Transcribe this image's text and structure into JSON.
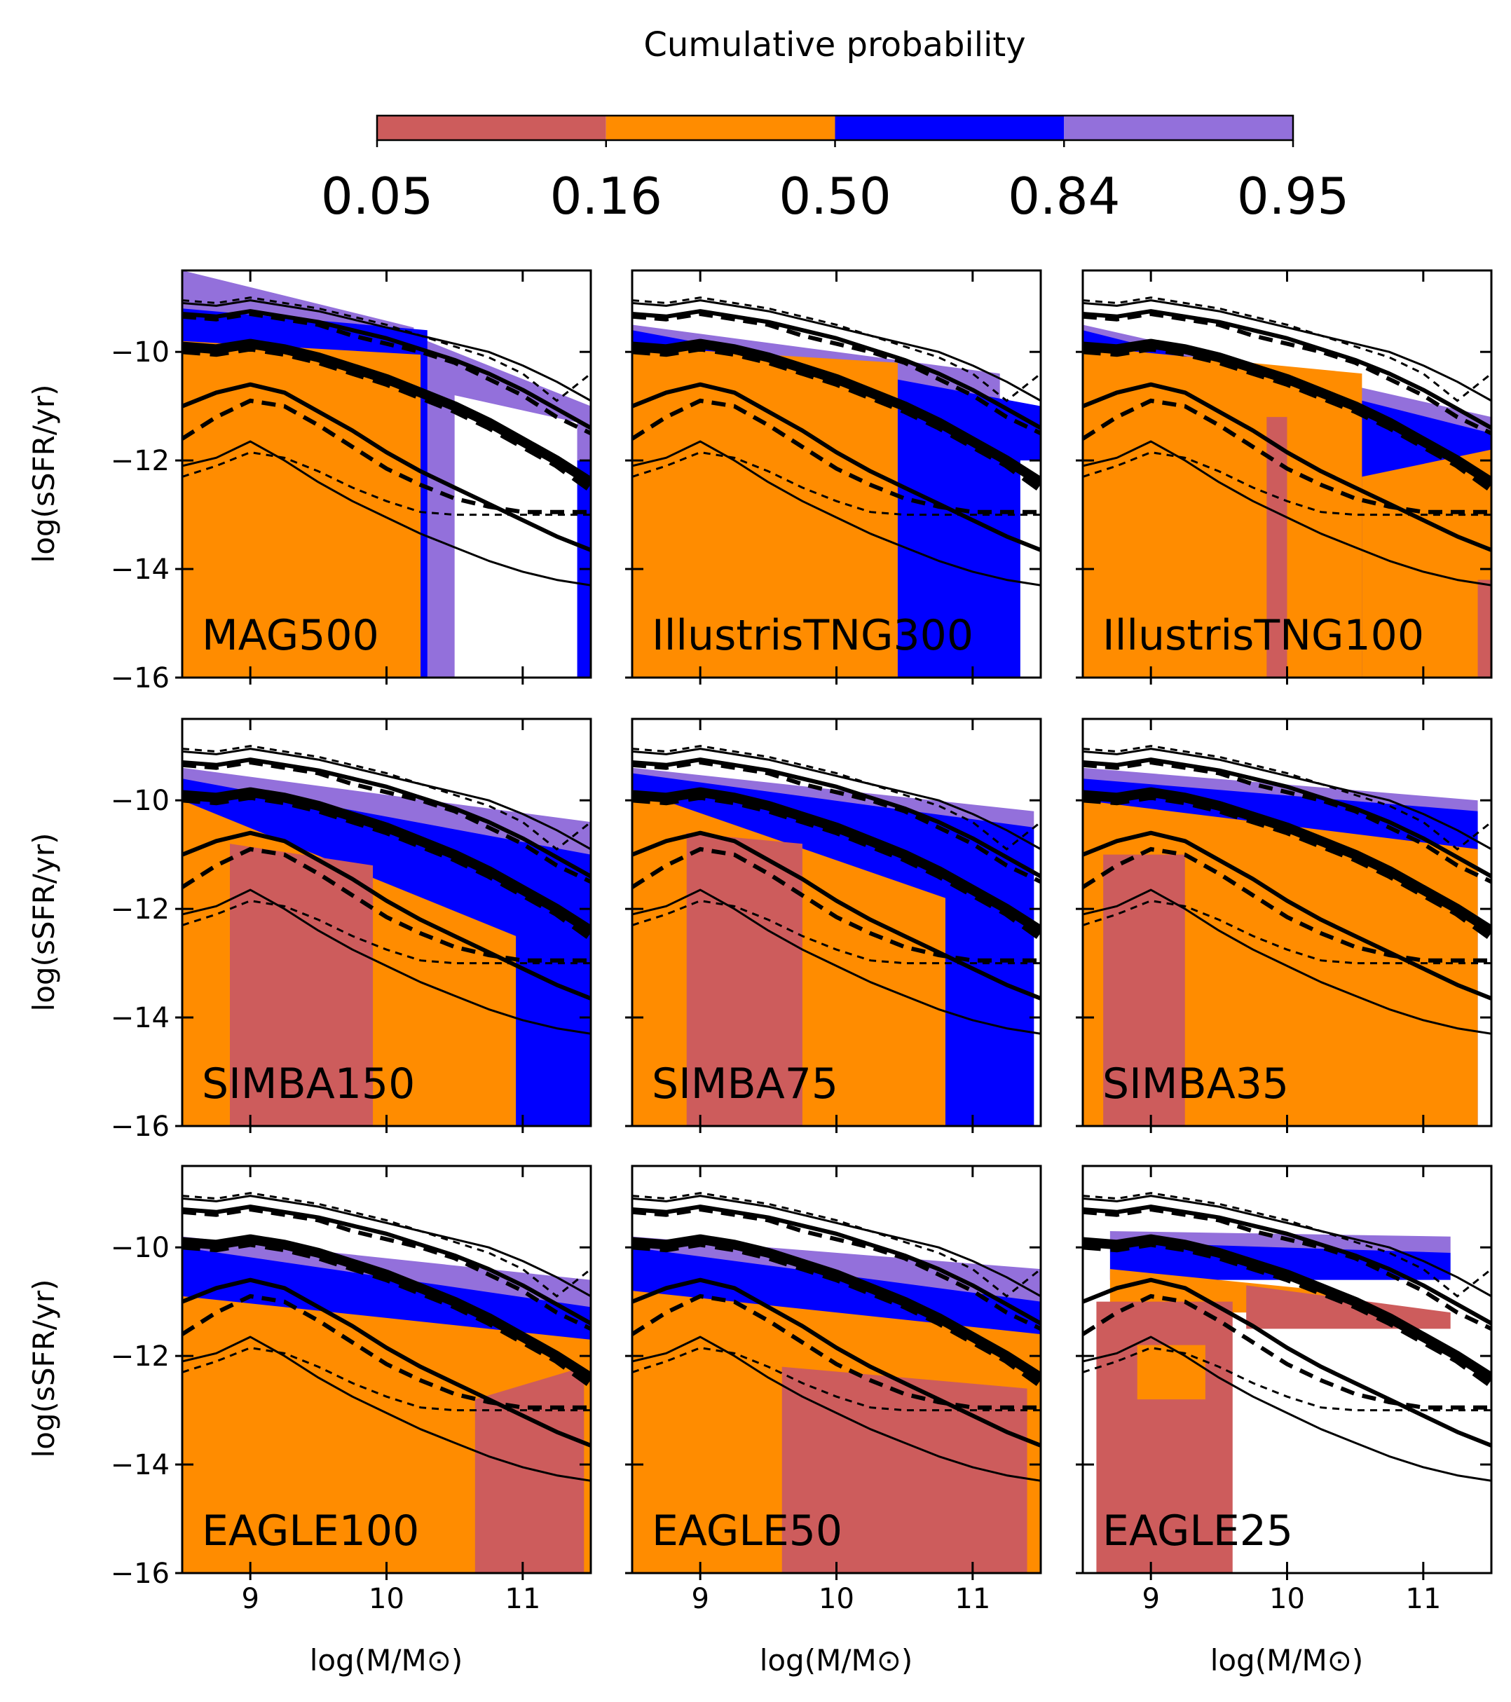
{
  "colorbar": {
    "title": "Cumulative probability",
    "ticks": [
      "0.05",
      "0.16",
      "0.50",
      "0.84",
      "0.95"
    ],
    "colors": [
      "#cd5c5c",
      "#ff8c00",
      "#0000ff",
      "#9370db"
    ]
  },
  "axes_text": {
    "ylabel": "log(sSFR/yr)",
    "xlabel": "log(M/M⊙)",
    "yticks": [
      "−10",
      "−12",
      "−14",
      "−16"
    ],
    "xticks": [
      "9",
      "10",
      "11"
    ]
  },
  "chart_data": {
    "type": "area",
    "grid": false,
    "xlim": [
      8.5,
      11.5
    ],
    "ylim": [
      -16,
      -8.5
    ],
    "ytick_values": [
      -10,
      -12,
      -14,
      -16
    ],
    "xtick_values": [
      9,
      10,
      11
    ],
    "reference_lines": {
      "x": [
        8.5,
        8.75,
        9.0,
        9.25,
        9.5,
        9.75,
        10.0,
        10.25,
        10.5,
        10.75,
        11.0,
        11.25,
        11.5
      ],
      "solid": [
        {
          "name": "solid_top",
          "width": 3,
          "y": [
            -9.1,
            -9.15,
            -9.05,
            -9.15,
            -9.25,
            -9.4,
            -9.55,
            -9.7,
            -9.85,
            -10.0,
            -10.25,
            -10.55,
            -10.9
          ]
        },
        {
          "name": "solid_high",
          "width": 6,
          "y": [
            -9.3,
            -9.35,
            -9.25,
            -9.35,
            -9.45,
            -9.6,
            -9.75,
            -9.95,
            -10.15,
            -10.4,
            -10.7,
            -11.05,
            -11.4
          ]
        },
        {
          "name": "solid_median",
          "width": 14,
          "y": [
            -9.9,
            -9.95,
            -9.85,
            -9.95,
            -10.1,
            -10.3,
            -10.5,
            -10.75,
            -11.0,
            -11.3,
            -11.65,
            -12.0,
            -12.4
          ]
        },
        {
          "name": "solid_low",
          "width": 6,
          "y": [
            -11.0,
            -10.75,
            -10.6,
            -10.75,
            -11.1,
            -11.45,
            -11.85,
            -12.2,
            -12.5,
            -12.8,
            -13.1,
            -13.4,
            -13.65
          ]
        },
        {
          "name": "solid_bottom",
          "width": 3,
          "y": [
            -12.1,
            -11.95,
            -11.65,
            -12.0,
            -12.4,
            -12.75,
            -13.05,
            -13.35,
            -13.6,
            -13.85,
            -14.05,
            -14.2,
            -14.3
          ]
        }
      ],
      "dashed": [
        {
          "name": "dashed_top",
          "width": 3,
          "y": [
            -9.05,
            -9.1,
            -9.0,
            -9.1,
            -9.2,
            -9.35,
            -9.5,
            -9.7,
            -9.9,
            -10.1,
            -10.4,
            -10.9,
            -10.4
          ]
        },
        {
          "name": "dashed_high",
          "width": 6,
          "y": [
            -9.35,
            -9.4,
            -9.3,
            -9.4,
            -9.5,
            -9.7,
            -9.85,
            -10.0,
            -10.2,
            -10.5,
            -10.8,
            -11.2,
            -11.5
          ]
        },
        {
          "name": "dashed_median",
          "width": 14,
          "y": [
            -9.95,
            -10.0,
            -9.9,
            -10.0,
            -10.15,
            -10.35,
            -10.55,
            -10.8,
            -11.05,
            -11.35,
            -11.7,
            -12.05,
            -12.5
          ]
        },
        {
          "name": "dashed_low",
          "width": 6,
          "y": [
            -11.6,
            -11.2,
            -10.9,
            -11.0,
            -11.35,
            -11.75,
            -12.15,
            -12.45,
            -12.7,
            -12.85,
            -12.95,
            -12.95,
            -12.95
          ]
        },
        {
          "name": "dashed_bottom",
          "width": 3,
          "y": [
            -12.3,
            -12.1,
            -11.85,
            -11.95,
            -12.2,
            -12.5,
            -12.75,
            -12.95,
            -13.0,
            -13.0,
            -13.0,
            -13.0,
            -13.0
          ]
        }
      ]
    },
    "panels": [
      {
        "name": "MAG500",
        "label": "MAG500",
        "fills": [
          {
            "color": "#9370db",
            "x0": 8.5,
            "x1": 10.2,
            "y_top": [
              -8.5,
              -9.55
            ],
            "y_bottom": [
              -16,
              -16
            ]
          },
          {
            "color": "#9370db",
            "x0": 10.2,
            "x1": 11.5,
            "y_top": [
              -9.7,
              -11.0
            ],
            "y_bottom": [
              -16,
              -16
            ]
          },
          {
            "color": "#0000ff",
            "x0": 8.5,
            "x1": 10.3,
            "y_top": [
              -9.2,
              -9.6
            ],
            "y_bottom": [
              -16,
              -16
            ]
          },
          {
            "color": "#0000ff",
            "x0": 11.4,
            "x1": 11.5,
            "y_top": [
              -12.0,
              -12.0
            ],
            "y_bottom": [
              -16,
              -16
            ]
          },
          {
            "color": "#ffffff",
            "x0": 10.5,
            "x1": 11.4,
            "y_top": [
              -10.8,
              -11.3
            ],
            "y_bottom": [
              -16,
              -16
            ]
          },
          {
            "color": "#ff8c00",
            "x0": 8.5,
            "x1": 10.25,
            "y_top": [
              -9.8,
              -10.05
            ],
            "y_bottom": [
              -16,
              -16
            ]
          }
        ]
      },
      {
        "name": "IllustrisTNG300",
        "label": "IllustrisTNG300",
        "fills": [
          {
            "color": "#9370db",
            "x0": 8.5,
            "x1": 11.2,
            "y_top": [
              -9.5,
              -10.4
            ],
            "y_bottom": [
              -16,
              -16
            ]
          },
          {
            "color": "#0000ff",
            "x0": 8.5,
            "x1": 11.5,
            "y_top": [
              -9.6,
              -11.0
            ],
            "y_bottom": [
              -16,
              -16
            ]
          },
          {
            "color": "#ff8c00",
            "x0": 8.5,
            "x1": 10.45,
            "y_top": [
              -9.9,
              -10.2
            ],
            "y_bottom": [
              -16,
              -16
            ]
          },
          {
            "color": "#ffffff",
            "x0": 11.35,
            "x1": 11.5,
            "y_top": [
              -12.0,
              -12.0
            ],
            "y_bottom": [
              -16,
              -16
            ]
          }
        ]
      },
      {
        "name": "IllustrisTNG100",
        "label": "IllustrisTNG100",
        "fills": [
          {
            "color": "#9370db",
            "x0": 8.5,
            "x1": 11.5,
            "y_top": [
              -9.5,
              -11.2
            ],
            "y_bottom": [
              -16,
              -16
            ]
          },
          {
            "color": "#0000ff",
            "x0": 8.5,
            "x1": 11.5,
            "y_top": [
              -9.6,
              -11.5
            ],
            "y_bottom": [
              -16,
              -16
            ]
          },
          {
            "color": "#ff8c00",
            "x0": 8.5,
            "x1": 10.55,
            "y_top": [
              -9.9,
              -10.4
            ],
            "y_bottom": [
              -16,
              -16
            ]
          },
          {
            "color": "#ff8c00",
            "x0": 10.55,
            "x1": 11.5,
            "y_top": [
              -12.3,
              -11.8
            ],
            "y_bottom": [
              -16,
              -16
            ]
          },
          {
            "color": "#cd5c5c",
            "x0": 9.85,
            "x1": 10.0,
            "y_top": [
              -11.2,
              -11.2
            ],
            "y_bottom": [
              -16,
              -16
            ]
          },
          {
            "color": "#cd5c5c",
            "x0": 11.4,
            "x1": 11.5,
            "y_top": [
              -14.2,
              -14.2
            ],
            "y_bottom": [
              -16,
              -16
            ]
          }
        ]
      },
      {
        "name": "SIMBA150",
        "label": "SIMBA150",
        "fills": [
          {
            "color": "#9370db",
            "x0": 8.5,
            "x1": 11.5,
            "y_top": [
              -9.4,
              -10.4
            ],
            "y_bottom": [
              -16,
              -16
            ]
          },
          {
            "color": "#0000ff",
            "x0": 8.5,
            "x1": 11.5,
            "y_top": [
              -9.6,
              -11.0
            ],
            "y_bottom": [
              -16,
              -16
            ]
          },
          {
            "color": "#ff8c00",
            "x0": 8.5,
            "x1": 10.95,
            "y_top": [
              -10.0,
              -12.5
            ],
            "y_bottom": [
              -16,
              -16
            ]
          },
          {
            "color": "#cd5c5c",
            "x0": 8.85,
            "x1": 9.9,
            "y_top": [
              -10.8,
              -11.2
            ],
            "y_bottom": [
              -16,
              -16
            ]
          }
        ]
      },
      {
        "name": "SIMBA75",
        "label": "SIMBA75",
        "fills": [
          {
            "color": "#9370db",
            "x0": 8.5,
            "x1": 11.45,
            "y_top": [
              -9.4,
              -10.2
            ],
            "y_bottom": [
              -16,
              -16
            ]
          },
          {
            "color": "#0000ff",
            "x0": 8.5,
            "x1": 11.45,
            "y_top": [
              -9.5,
              -10.5
            ],
            "y_bottom": [
              -16,
              -16
            ]
          },
          {
            "color": "#ff8c00",
            "x0": 8.5,
            "x1": 10.8,
            "y_top": [
              -9.8,
              -11.8
            ],
            "y_bottom": [
              -16,
              -16
            ]
          },
          {
            "color": "#cd5c5c",
            "x0": 8.9,
            "x1": 9.75,
            "y_top": [
              -10.6,
              -10.8
            ],
            "y_bottom": [
              -16,
              -16
            ]
          }
        ]
      },
      {
        "name": "SIMBA35",
        "label": "SIMBA35",
        "fills": [
          {
            "color": "#9370db",
            "x0": 8.5,
            "x1": 11.4,
            "y_top": [
              -9.4,
              -10.0
            ],
            "y_bottom": [
              -16,
              -16
            ]
          },
          {
            "color": "#0000ff",
            "x0": 8.5,
            "x1": 11.4,
            "y_top": [
              -9.6,
              -10.2
            ],
            "y_bottom": [
              -16,
              -16
            ]
          },
          {
            "color": "#ff8c00",
            "x0": 8.5,
            "x1": 11.4,
            "y_top": [
              -10.0,
              -10.9
            ],
            "y_bottom": [
              -16,
              -16
            ]
          },
          {
            "color": "#cd5c5c",
            "x0": 8.65,
            "x1": 9.25,
            "y_top": [
              -11.0,
              -11.0
            ],
            "y_bottom": [
              -16,
              -16
            ]
          }
        ]
      },
      {
        "name": "EAGLE100",
        "label": "EAGLE100",
        "fills": [
          {
            "color": "#9370db",
            "x0": 8.5,
            "x1": 11.5,
            "y_top": [
              -9.8,
              -10.6
            ],
            "y_bottom": [
              -16,
              -16
            ]
          },
          {
            "color": "#0000ff",
            "x0": 8.5,
            "x1": 11.5,
            "y_top": [
              -10.0,
              -11.1
            ],
            "y_bottom": [
              -16,
              -16
            ]
          },
          {
            "color": "#ff8c00",
            "x0": 8.5,
            "x1": 11.5,
            "y_top": [
              -10.9,
              -11.7
            ],
            "y_bottom": [
              -16,
              -16
            ]
          },
          {
            "color": "#cd5c5c",
            "x0": 10.65,
            "x1": 11.45,
            "y_top": [
              -12.8,
              -12.2
            ],
            "y_bottom": [
              -16,
              -16
            ]
          }
        ]
      },
      {
        "name": "EAGLE50",
        "label": "EAGLE50",
        "fills": [
          {
            "color": "#9370db",
            "x0": 8.5,
            "x1": 11.5,
            "y_top": [
              -9.8,
              -10.4
            ],
            "y_bottom": [
              -16,
              -16
            ]
          },
          {
            "color": "#0000ff",
            "x0": 8.5,
            "x1": 11.5,
            "y_top": [
              -10.0,
              -11.0
            ],
            "y_bottom": [
              -16,
              -16
            ]
          },
          {
            "color": "#ff8c00",
            "x0": 8.5,
            "x1": 11.5,
            "y_top": [
              -10.8,
              -11.6
            ],
            "y_bottom": [
              -16,
              -16
            ]
          },
          {
            "color": "#cd5c5c",
            "x0": 9.6,
            "x1": 11.4,
            "y_top": [
              -12.2,
              -12.6
            ],
            "y_bottom": [
              -16,
              -16
            ]
          }
        ]
      },
      {
        "name": "EAGLE25",
        "label": "EAGLE25",
        "fills": [
          {
            "color": "#9370db",
            "x0": 8.7,
            "x1": 11.2,
            "y_top": [
              -9.7,
              -9.8
            ],
            "y_bottom": [
              -10.1,
              -10.1
            ]
          },
          {
            "color": "#0000ff",
            "x0": 8.7,
            "x1": 11.2,
            "y_top": [
              -9.9,
              -10.1
            ],
            "y_bottom": [
              -10.6,
              -10.6
            ]
          },
          {
            "color": "#ff8c00",
            "x0": 8.7,
            "x1": 10.3,
            "y_top": [
              -10.4,
              -10.8
            ],
            "y_bottom": [
              -11.2,
              -11.2
            ]
          },
          {
            "color": "#cd5c5c",
            "x0": 9.7,
            "x1": 11.2,
            "y_top": [
              -10.7,
              -11.2
            ],
            "y_bottom": [
              -11.5,
              -11.5
            ]
          },
          {
            "color": "#cd5c5c",
            "x0": 8.6,
            "x1": 9.6,
            "y_top": [
              -11.0,
              -11.0
            ],
            "y_bottom": [
              -16,
              -16
            ]
          },
          {
            "color": "#ff8c00",
            "x0": 8.9,
            "x1": 9.4,
            "y_top": [
              -11.8,
              -11.8
            ],
            "y_bottom": [
              -12.8,
              -12.8
            ]
          }
        ]
      }
    ]
  }
}
